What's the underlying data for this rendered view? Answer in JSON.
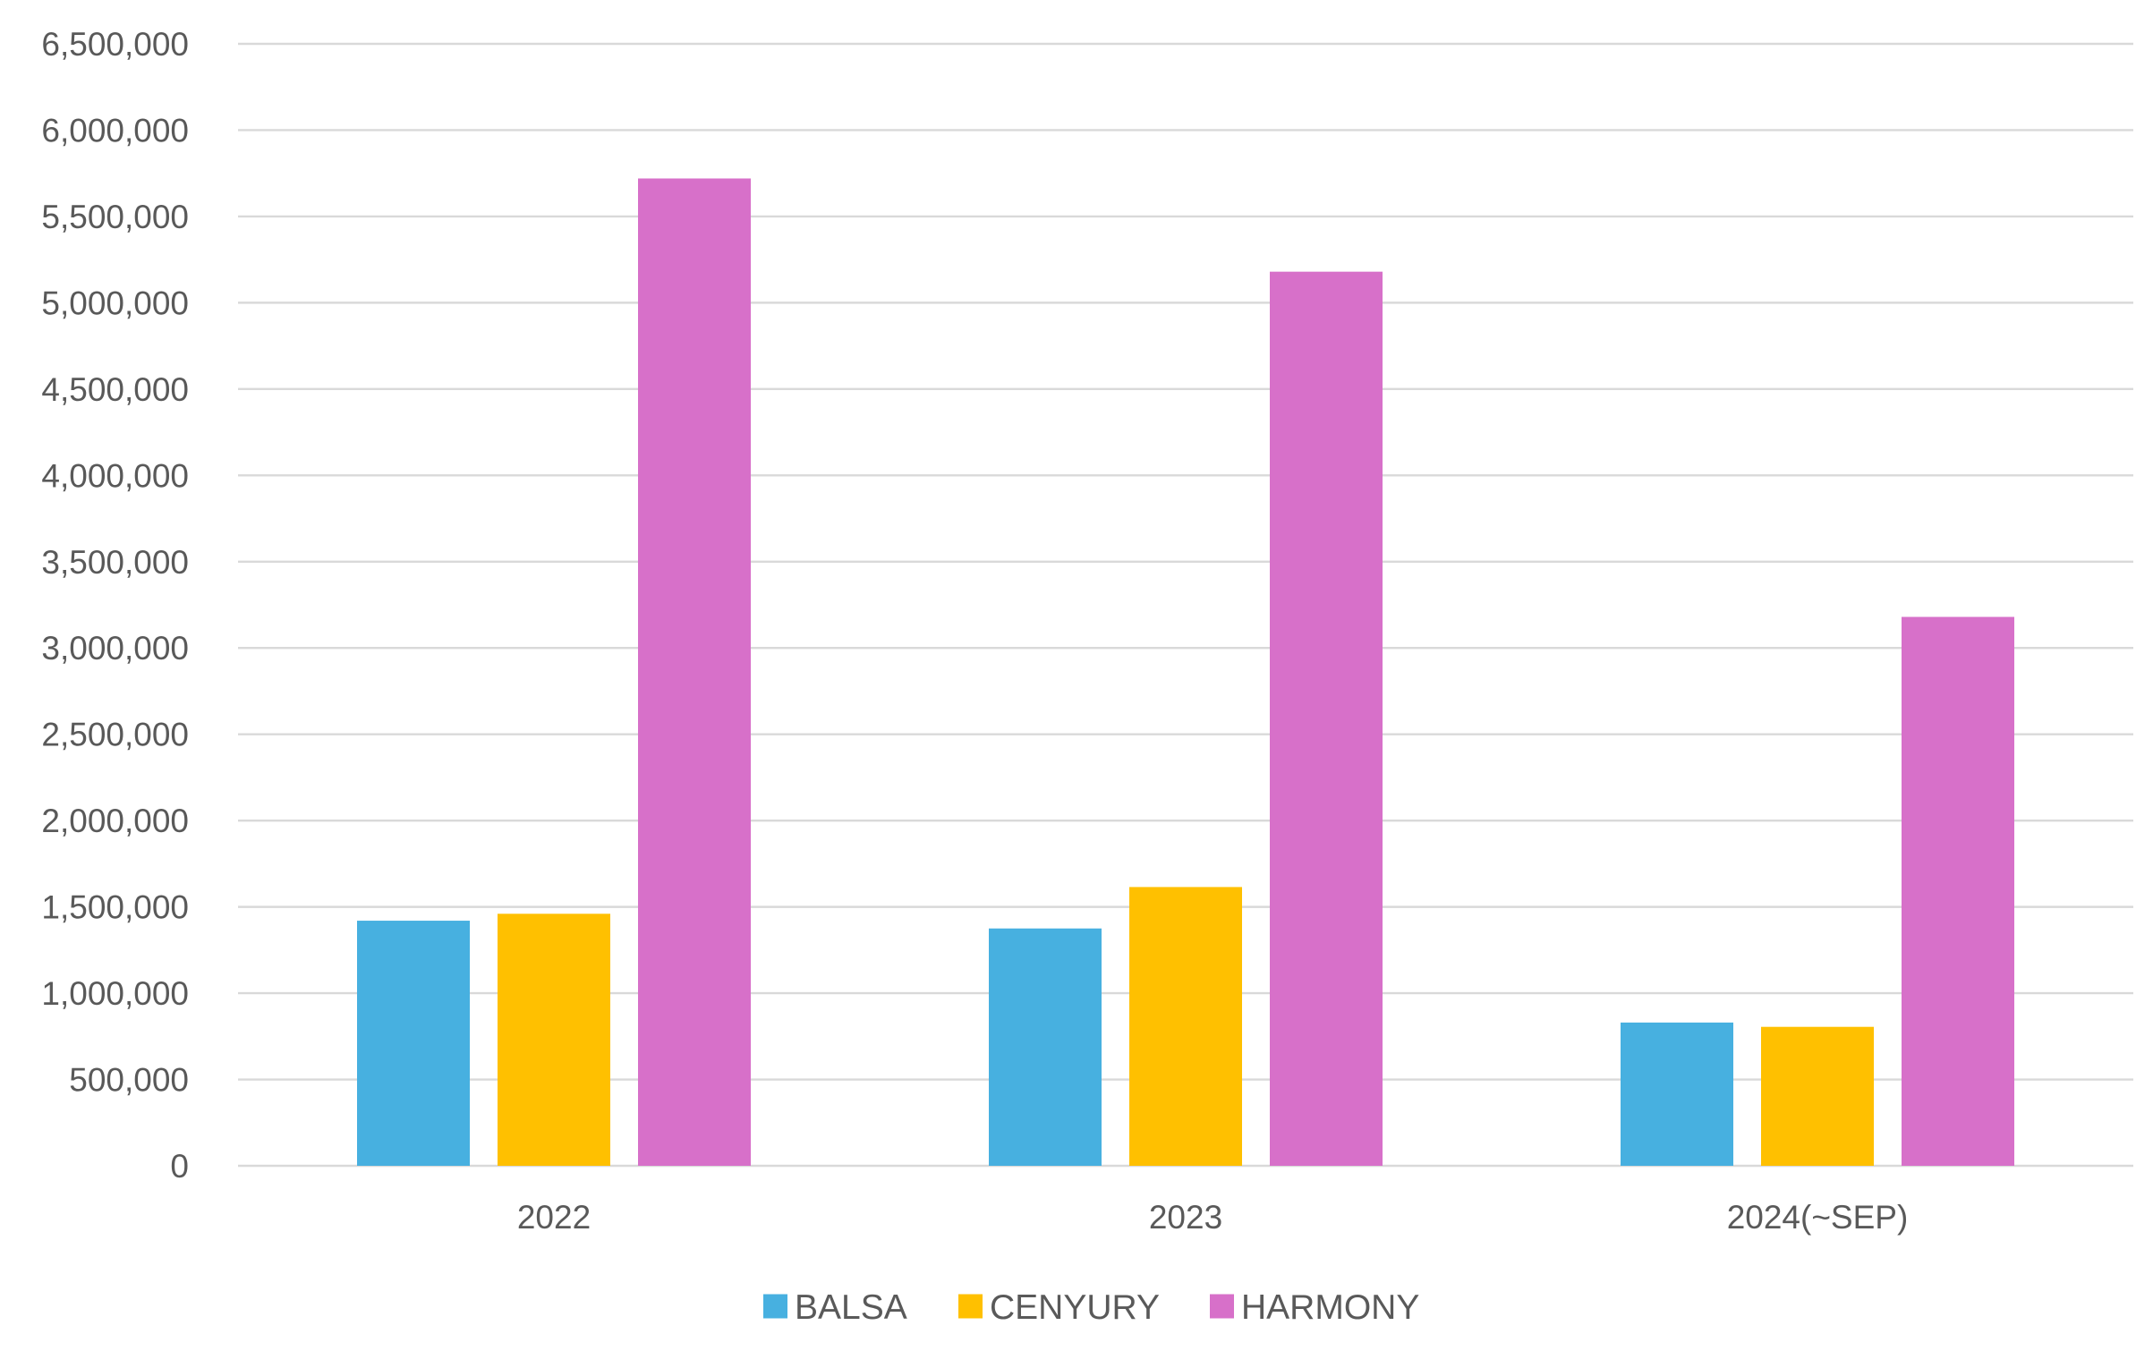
{
  "chart_data": {
    "type": "bar",
    "title": "",
    "xlabel": "",
    "ylabel": "",
    "categories": [
      "2022",
      "2023",
      "2024(~SEP)"
    ],
    "series": [
      {
        "name": "BALSA",
        "color": "#47b0e0",
        "values": [
          1420000,
          1375000,
          830000
        ]
      },
      {
        "name": "CENYURY",
        "color": "#ffc000",
        "values": [
          1460000,
          1615000,
          805000
        ]
      },
      {
        "name": "HARMONY",
        "color": "#d770c9",
        "values": [
          5720000,
          5180000,
          3180000
        ]
      }
    ],
    "ylim": [
      0,
      6500000
    ],
    "ytick_step": 500000,
    "ytick_labels": [
      "0",
      "500,000",
      "1,000,000",
      "1,500,000",
      "2,000,000",
      "2,500,000",
      "3,000,000",
      "3,500,000",
      "4,000,000",
      "4,500,000",
      "5,000,000",
      "5,500,000",
      "6,000,000",
      "6,500,000"
    ],
    "grid": true,
    "legend": "bottom-center"
  }
}
